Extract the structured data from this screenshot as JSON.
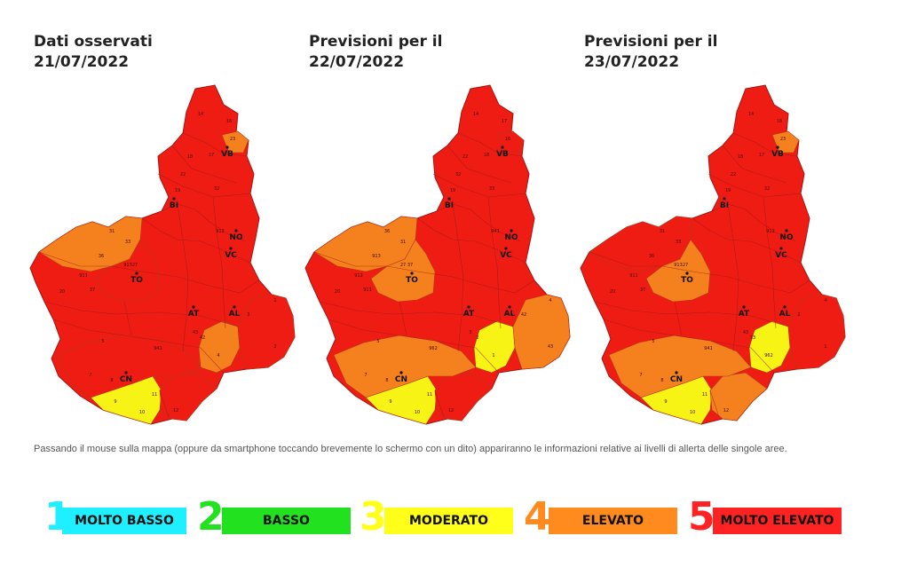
{
  "panels": [
    {
      "title_line1": "Dati osservati",
      "title_line2": "21/07/2022",
      "zone_levels": {
        "zone_ne_small": 4,
        "zone_nw": 4,
        "zone_west_inner": 5,
        "zone_sw": 3,
        "zone_se": 4,
        "zone_mid_south": 5,
        "zone_east": 5,
        "zone_south_band": 5
      },
      "zone_labels": [
        "23",
        "16",
        "17",
        "18",
        "22",
        "32",
        "33",
        "31",
        "36",
        "913",
        "27",
        "37",
        "911",
        "912",
        "941",
        "4",
        "42",
        "43",
        "1",
        "2",
        "3",
        "5",
        "7",
        "8",
        "9",
        "10",
        "11",
        "12",
        "14",
        "19",
        "20"
      ]
    },
    {
      "title_line1": "Previsioni per il",
      "title_line2": "22/07/2022",
      "zone_levels": {
        "zone_ne_small": 5,
        "zone_nw": 4,
        "zone_west_inner": 4,
        "zone_sw": 3,
        "zone_se": 3,
        "zone_mid_south": 5,
        "zone_east": 4,
        "zone_south_band": 4
      },
      "zone_labels": [
        "16",
        "17",
        "18",
        "22",
        "32",
        "33",
        "31",
        "36",
        "913",
        "27",
        "37",
        "911",
        "912",
        "941",
        "962",
        "1",
        "2",
        "3",
        "4",
        "43",
        "42",
        "5",
        "7",
        "8",
        "9",
        "10",
        "11",
        "12",
        "14",
        "19",
        "20"
      ]
    },
    {
      "title_line1": "Previsioni per il",
      "title_line2": "23/07/2022",
      "zone_levels": {
        "zone_ne_small": 4,
        "zone_nw": 5,
        "zone_west_inner": 4,
        "zone_sw": 3,
        "zone_se": 3,
        "zone_mid_south": 4,
        "zone_east": 5,
        "zone_south_band": 4
      },
      "zone_labels": [
        "23",
        "16",
        "17",
        "18",
        "22",
        "32",
        "33",
        "31",
        "36",
        "913",
        "27",
        "37",
        "911",
        "912",
        "941",
        "962",
        "13",
        "43",
        "4",
        "1",
        "2",
        "5",
        "7",
        "8",
        "9",
        "10",
        "11",
        "12",
        "14",
        "19",
        "20"
      ]
    }
  ],
  "city_labels": [
    "VB",
    "BI",
    "NO",
    "VC",
    "TO",
    "AT",
    "AL",
    "CN"
  ],
  "note": "Passando il mouse sulla mappa (oppure da smartphone toccando brevemente lo schermo con un dito) appariranno le informazioni relative ai livelli di allerta delle singole aree.",
  "legend": [
    {
      "number": "1",
      "label": "MOLTO BASSO",
      "color": "#1ff0ff",
      "number_color": "#1ff0ff"
    },
    {
      "number": "2",
      "label": "BASSO",
      "color": "#22e11f",
      "number_color": "#22e11f"
    },
    {
      "number": "3",
      "label": "MODERATO",
      "color": "#ffff1a",
      "number_color": "#ffff1a"
    },
    {
      "number": "4",
      "label": "ELEVATO",
      "color": "#ff8a1e",
      "number_color": "#ff8a1e"
    },
    {
      "number": "5",
      "label": "MOLTO ELEVATO",
      "color": "#ff2222",
      "number_color": "#ff2222"
    }
  ],
  "level_colors": {
    "1": "#1ff0ff",
    "2": "#22e11f",
    "3": "#f7f415",
    "4": "#f4801e",
    "5": "#ef1c14"
  }
}
